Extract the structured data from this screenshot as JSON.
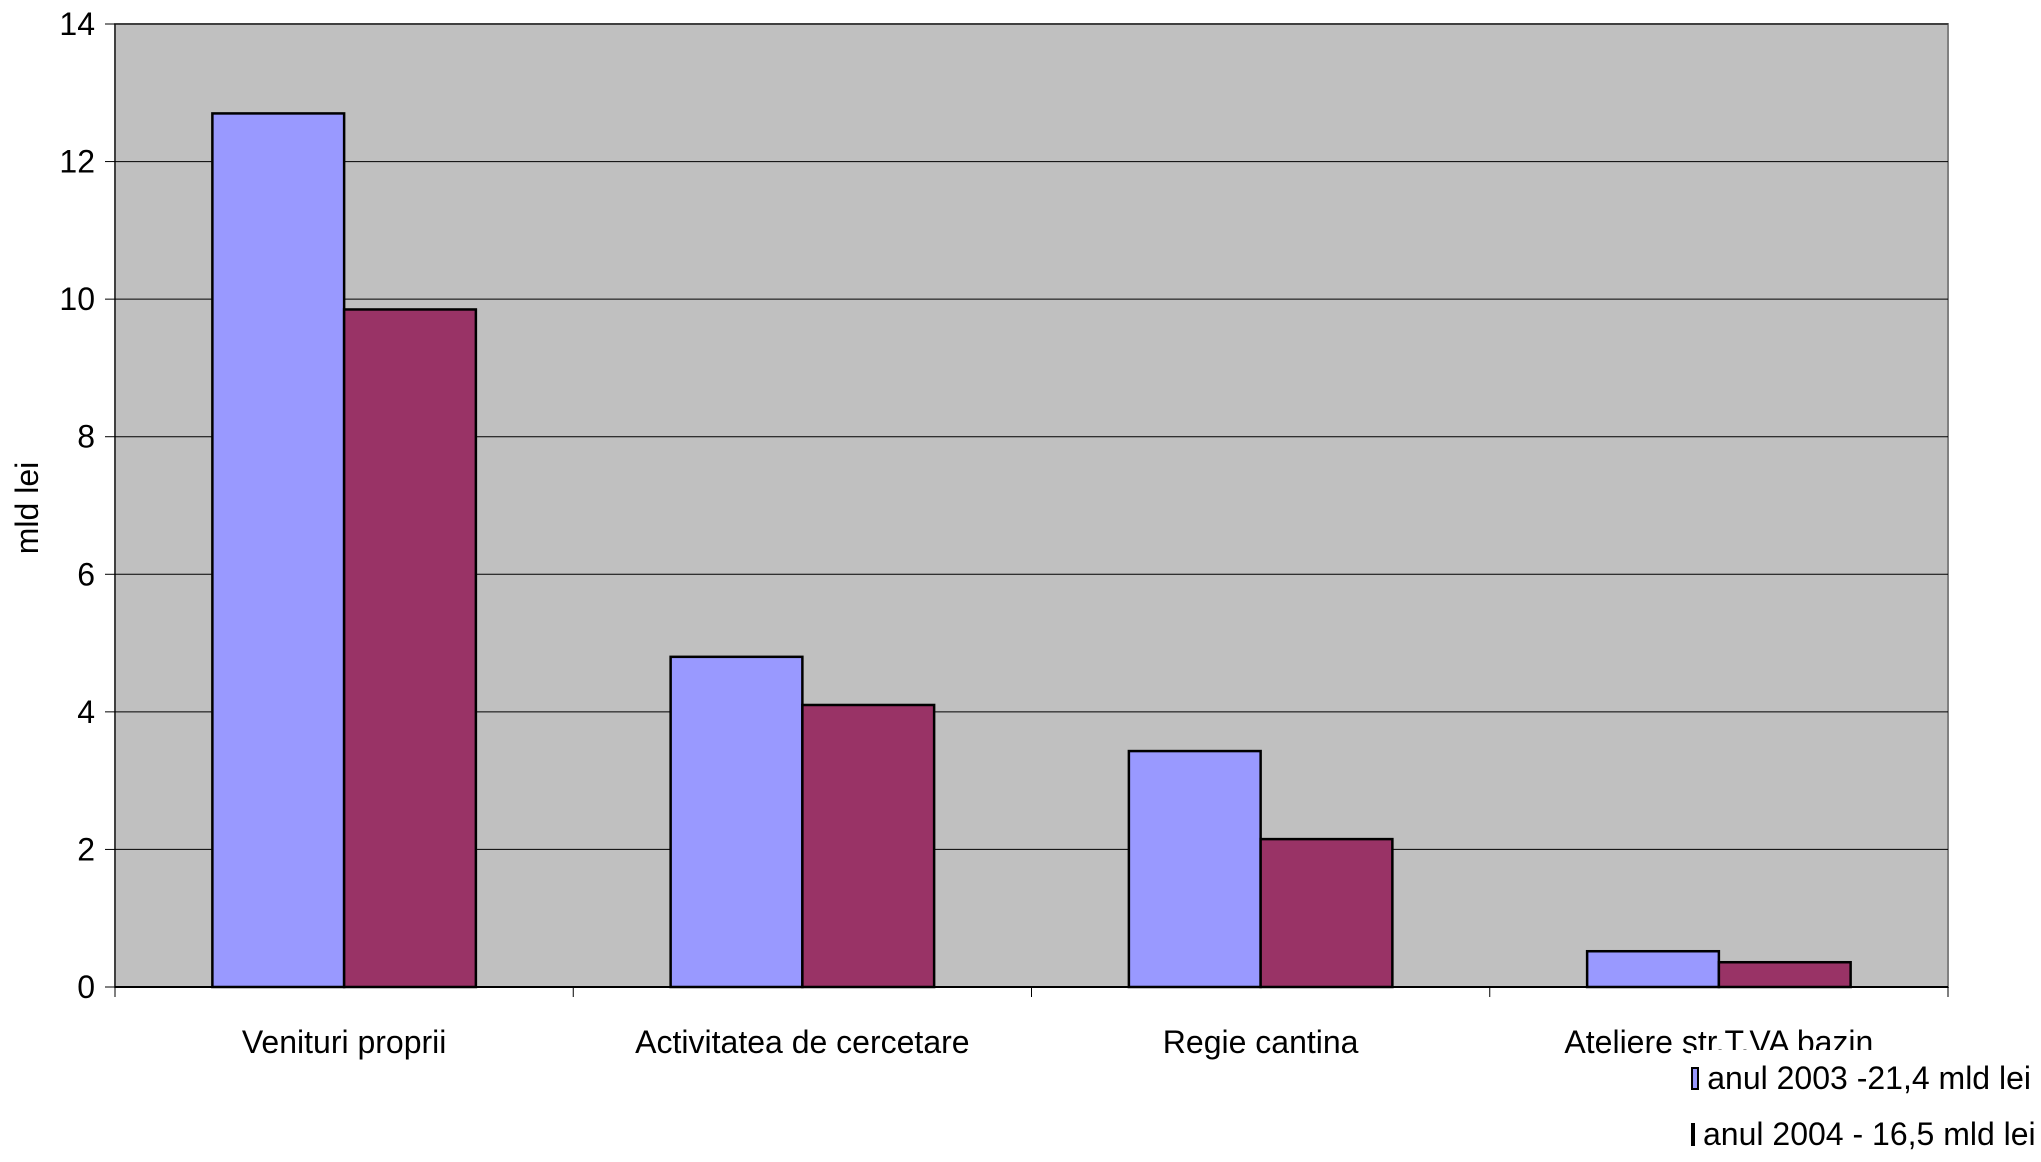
{
  "chart_data": {
    "type": "bar",
    "title": "",
    "xlabel": "",
    "ylabel": "mld lei",
    "ylim": [
      0,
      14
    ],
    "yticks": [
      0,
      2,
      4,
      6,
      8,
      10,
      12,
      14
    ],
    "grid": true,
    "legend_position": "bottom-right",
    "categories": [
      "Venituri proprii",
      "Activitatea de cercetare",
      "Regie cantina",
      "Ateliere str.T.VA bazin"
    ],
    "series": [
      {
        "name": "anul 2003 -21,4 mld lei",
        "color": "#9999ff",
        "values": [
          12.7,
          4.8,
          3.43,
          0.52
        ]
      },
      {
        "name": "anul 2004 - 16,5 mld lei",
        "color": "#993366",
        "values": [
          9.85,
          4.1,
          2.15,
          0.36
        ]
      }
    ],
    "plot_background": "#c0c0c0"
  }
}
